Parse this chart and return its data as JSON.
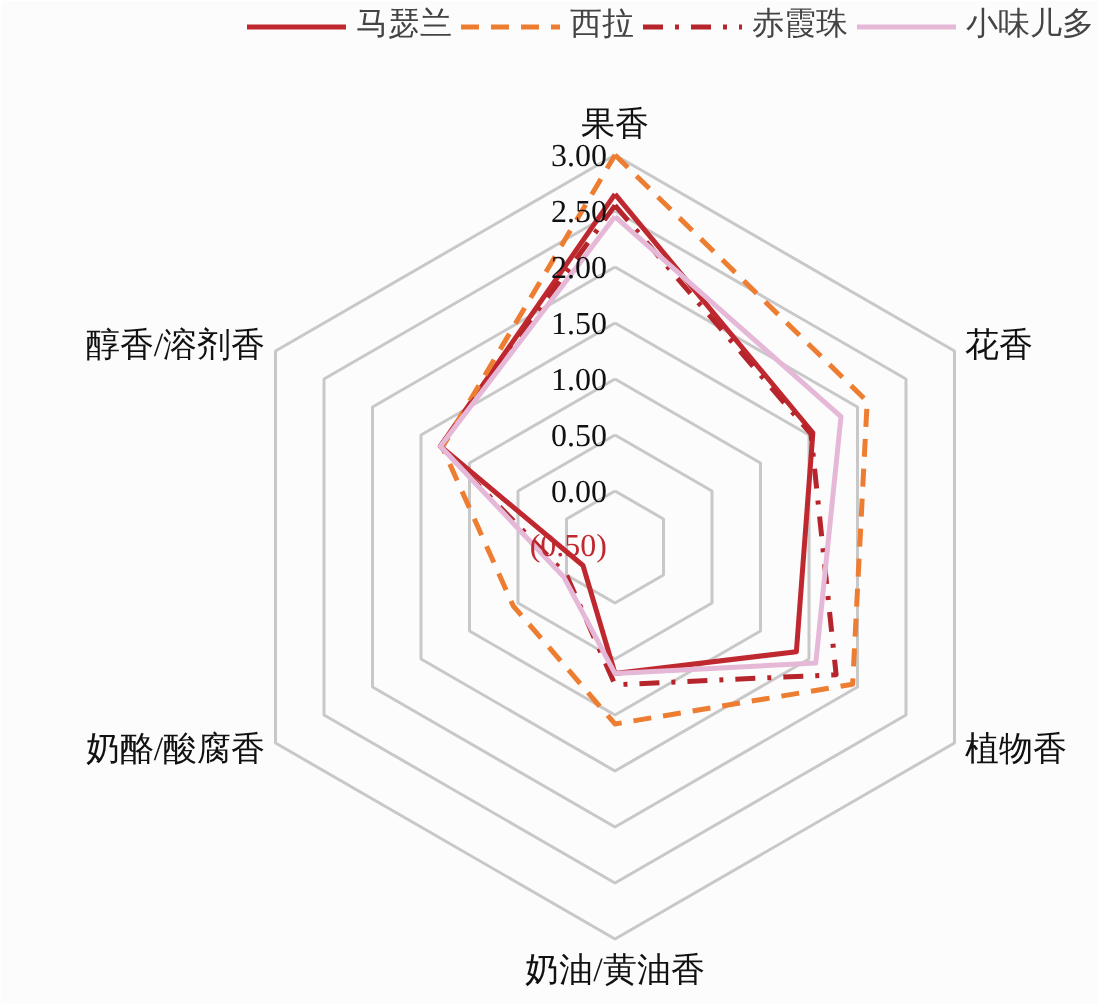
{
  "chart_data": {
    "type": "radar",
    "categories": [
      "果香",
      "花香",
      "植物香",
      "奶油/黄油香",
      "奶酪/酸腐香",
      "醇香/溶剂香"
    ],
    "ylim": [
      -0.5,
      3.0
    ],
    "yticks": [
      {
        "value": -0.5,
        "label": "(0.50)"
      },
      {
        "value": 0,
        "label": "0.00"
      },
      {
        "value": 0.5,
        "label": "0.50"
      },
      {
        "value": 1.0,
        "label": "1.00"
      },
      {
        "value": 1.5,
        "label": "1.50"
      },
      {
        "value": 2.0,
        "label": "2.00"
      },
      {
        "value": 2.5,
        "label": "2.50"
      },
      {
        "value": 3.0,
        "label": "3.00"
      }
    ],
    "grid": true,
    "legend": "top",
    "series": [
      {
        "name": "马瑟兰",
        "color": "#c0282f",
        "line_style": "solid",
        "values": [
          2.65,
          1.54,
          1.37,
          0.63,
          -0.17,
          1.3
        ]
      },
      {
        "name": "西拉",
        "color": "#ed7d31",
        "line_style": "dashed",
        "values": [
          3.0,
          2.1,
          1.95,
          1.08,
          0.55,
          1.28
        ]
      },
      {
        "name": "赤霞珠",
        "color": "#b5252b",
        "line_style": "dashdot",
        "values": [
          2.55,
          1.52,
          1.78,
          0.73,
          0.0,
          1.3
        ]
      },
      {
        "name": "小味儿多",
        "color": "#e6b8d7",
        "line_style": "solid",
        "values": [
          2.45,
          1.83,
          1.57,
          0.63,
          0.03,
          1.3
        ]
      }
    ]
  }
}
